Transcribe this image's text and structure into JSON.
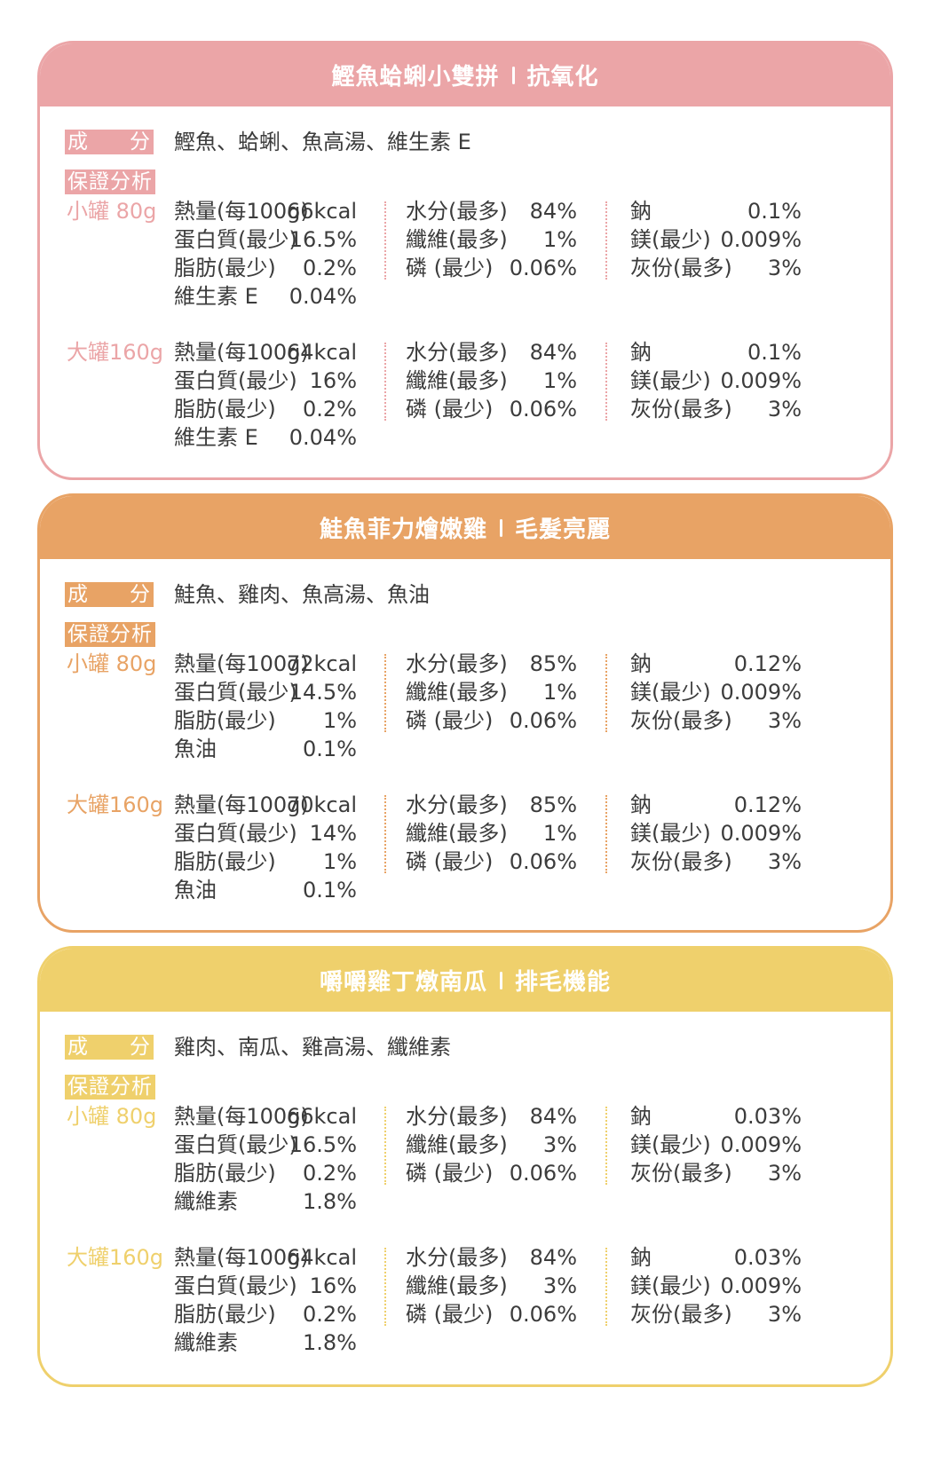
{
  "labels": {
    "ingredients_a": "成",
    "ingredients_b": "分",
    "analysis": "保證分析"
  },
  "products": [
    {
      "color": "#eba5a7",
      "title": "鰹魚蛤蜊小雙拼",
      "benefit": "抗氧化",
      "ingredients": "鰹魚、蛤蜊、魚高湯、維生素 E",
      "sizes": [
        {
          "label": "小罐 80g",
          "col1": [
            {
              "name": "熱量(每100g)",
              "value": "66kcal"
            },
            {
              "name": "蛋白質(最少)",
              "value": "16.5%"
            },
            {
              "name": "脂肪(最少)",
              "value": "0.2%"
            },
            {
              "name": "維生素 E",
              "value": "0.04%"
            }
          ],
          "col2": [
            {
              "name": "水分(最多)",
              "value": "84%"
            },
            {
              "name": "纖維(最多)",
              "value": "1%"
            },
            {
              "name": "磷 (最少)",
              "value": "0.06%"
            }
          ],
          "col3": [
            {
              "name": "鈉",
              "value": "0.1%"
            },
            {
              "name": "鎂(最少)",
              "value": "0.009%"
            },
            {
              "name": "灰份(最多)",
              "value": "3%"
            }
          ]
        },
        {
          "label": "大罐160g",
          "col1": [
            {
              "name": "熱量(每100g)",
              "value": "64kcal"
            },
            {
              "name": "蛋白質(最少)",
              "value": "16%"
            },
            {
              "name": "脂肪(最少)",
              "value": "0.2%"
            },
            {
              "name": "維生素 E",
              "value": "0.04%"
            }
          ],
          "col2": [
            {
              "name": "水分(最多)",
              "value": "84%"
            },
            {
              "name": "纖維(最多)",
              "value": "1%"
            },
            {
              "name": "磷 (最少)",
              "value": "0.06%"
            }
          ],
          "col3": [
            {
              "name": "鈉",
              "value": "0.1%"
            },
            {
              "name": "鎂(最少)",
              "value": "0.009%"
            },
            {
              "name": "灰份(最多)",
              "value": "3%"
            }
          ]
        }
      ]
    },
    {
      "color": "#e8a365",
      "title": "鮭魚菲力燴嫩雞",
      "benefit": "毛髮亮麗",
      "ingredients": "鮭魚、雞肉、魚高湯、魚油",
      "sizes": [
        {
          "label": "小罐 80g",
          "col1": [
            {
              "name": "熱量(每100g)",
              "value": "72kcal"
            },
            {
              "name": "蛋白質(最少)",
              "value": "14.5%"
            },
            {
              "name": "脂肪(最少)",
              "value": "1%"
            },
            {
              "name": "魚油",
              "value": "0.1%"
            }
          ],
          "col2": [
            {
              "name": "水分(最多)",
              "value": "85%"
            },
            {
              "name": "纖維(最多)",
              "value": "1%"
            },
            {
              "name": "磷 (最少)",
              "value": "0.06%"
            }
          ],
          "col3": [
            {
              "name": "鈉",
              "value": "0.12%"
            },
            {
              "name": "鎂(最少)",
              "value": "0.009%"
            },
            {
              "name": "灰份(最多)",
              "value": "3%"
            }
          ]
        },
        {
          "label": "大罐160g",
          "col1": [
            {
              "name": "熱量(每100g)",
              "value": "70kcal"
            },
            {
              "name": "蛋白質(最少)",
              "value": "14%"
            },
            {
              "name": "脂肪(最少)",
              "value": "1%"
            },
            {
              "name": "魚油",
              "value": "0.1%"
            }
          ],
          "col2": [
            {
              "name": "水分(最多)",
              "value": "85%"
            },
            {
              "name": "纖維(最多)",
              "value": "1%"
            },
            {
              "name": "磷 (最少)",
              "value": "0.06%"
            }
          ],
          "col3": [
            {
              "name": "鈉",
              "value": "0.12%"
            },
            {
              "name": "鎂(最少)",
              "value": "0.009%"
            },
            {
              "name": "灰份(最多)",
              "value": "3%"
            }
          ]
        }
      ]
    },
    {
      "color": "#efd06c",
      "title": "嚼嚼雞丁燉南瓜",
      "benefit": "排毛機能",
      "ingredients": "雞肉、南瓜、雞高湯、纖維素",
      "sizes": [
        {
          "label": "小罐 80g",
          "col1": [
            {
              "name": "熱量(每100g)",
              "value": "66kcal"
            },
            {
              "name": "蛋白質(最少)",
              "value": "16.5%"
            },
            {
              "name": "脂肪(最少)",
              "value": "0.2%"
            },
            {
              "name": "纖維素",
              "value": "1.8%"
            }
          ],
          "col2": [
            {
              "name": "水分(最多)",
              "value": "84%"
            },
            {
              "name": "纖維(最多)",
              "value": "3%"
            },
            {
              "name": "磷 (最少)",
              "value": "0.06%"
            }
          ],
          "col3": [
            {
              "name": "鈉",
              "value": "0.03%"
            },
            {
              "name": "鎂(最少)",
              "value": "0.009%"
            },
            {
              "name": "灰份(最多)",
              "value": "3%"
            }
          ]
        },
        {
          "label": "大罐160g",
          "col1": [
            {
              "name": "熱量(每100g)",
              "value": "64kcal"
            },
            {
              "name": "蛋白質(最少)",
              "value": "16%"
            },
            {
              "name": "脂肪(最少)",
              "value": "0.2%"
            },
            {
              "name": "纖維素",
              "value": "1.8%"
            }
          ],
          "col2": [
            {
              "name": "水分(最多)",
              "value": "84%"
            },
            {
              "name": "纖維(最多)",
              "value": "3%"
            },
            {
              "name": "磷 (最少)",
              "value": "0.06%"
            }
          ],
          "col3": [
            {
              "name": "鈉",
              "value": "0.03%"
            },
            {
              "name": "鎂(最少)",
              "value": "0.009%"
            },
            {
              "name": "灰份(最多)",
              "value": "3%"
            }
          ]
        }
      ]
    }
  ]
}
